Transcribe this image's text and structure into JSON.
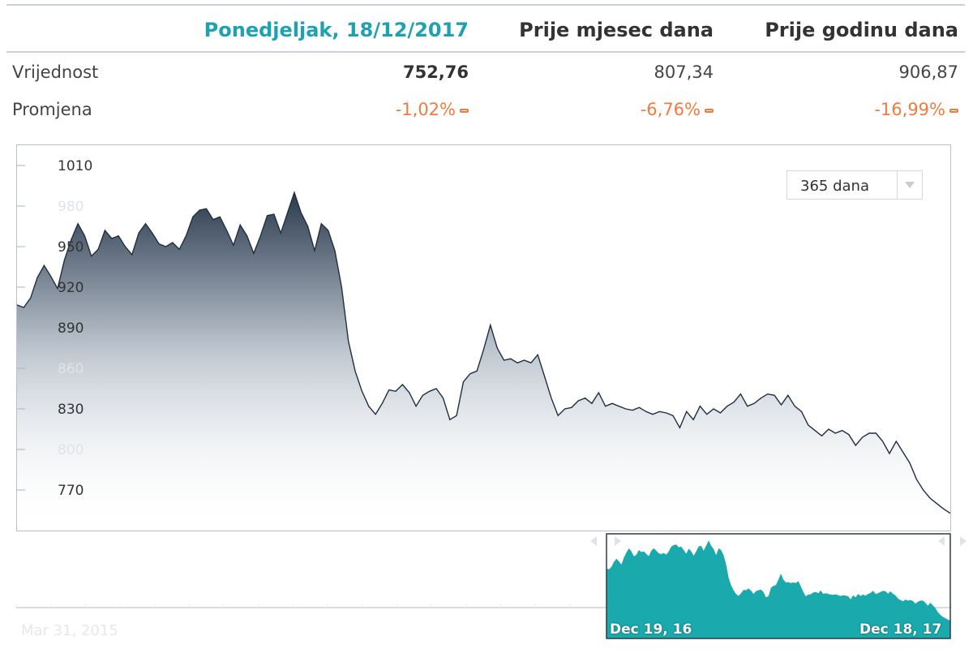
{
  "summary": {
    "columns": [
      "Ponedjeljak, 18/12/2017",
      "Prije mjesec dana",
      "Prije godinu dana"
    ],
    "rows": {
      "value_label": "Vrijednost",
      "values": [
        "752,76",
        "807,34",
        "906,87"
      ],
      "change_label": "Promjena",
      "changes": [
        "-1,02%",
        "-6,76%",
        "-16,99%"
      ]
    }
  },
  "range_selector": {
    "selected": "365 dana"
  },
  "navigator": {
    "start_label": "Dec 19, 16",
    "end_label": "Dec 18, 17",
    "far_label": "Mar 31, 2015"
  },
  "colors": {
    "accent": "#1ea2b0",
    "negative": "#f07b3f",
    "line": "#1f2f40",
    "navigator_fill": "#1aa9ad"
  },
  "chart_data": {
    "type": "area",
    "title": "",
    "xlabel": "",
    "ylabel": "",
    "x_range": [
      "Dec 19, 16",
      "Dec 18, 17"
    ],
    "ylim": [
      740,
      1025
    ],
    "yticks": [
      "1010",
      "980",
      "950",
      "920",
      "890",
      "860",
      "830",
      "800",
      "770"
    ],
    "grid": false,
    "series": [
      {
        "values": [
          906.87,
          905,
          912,
          927,
          936,
          928,
          919,
          940,
          955,
          967,
          958,
          943,
          948,
          962,
          956,
          958,
          950,
          944,
          960,
          967,
          960,
          952,
          950,
          953,
          948,
          958,
          972,
          977,
          978,
          970,
          972,
          962,
          951,
          966,
          958,
          945,
          958,
          973,
          974,
          960,
          975,
          990,
          975,
          965,
          947,
          967,
          962,
          947,
          920,
          880,
          858,
          843,
          832,
          826,
          834,
          844,
          843,
          848,
          842,
          832,
          840,
          843,
          845,
          838,
          822,
          825,
          850,
          856,
          858,
          874,
          892,
          875,
          866,
          867,
          864,
          866,
          864,
          870,
          854,
          838,
          825,
          830,
          831,
          836,
          838,
          834,
          842,
          832,
          834,
          832,
          830,
          829,
          831,
          828,
          826,
          828,
          827,
          825,
          816,
          828,
          822,
          832,
          826,
          830,
          827,
          832,
          835,
          841,
          832,
          834,
          838,
          841,
          840,
          833,
          840,
          832,
          828,
          818,
          814,
          810,
          815,
          812,
          814,
          811,
          803,
          809,
          812,
          812,
          806,
          797,
          806,
          798,
          790,
          778,
          770,
          764,
          760,
          756,
          752.76
        ]
      }
    ]
  }
}
